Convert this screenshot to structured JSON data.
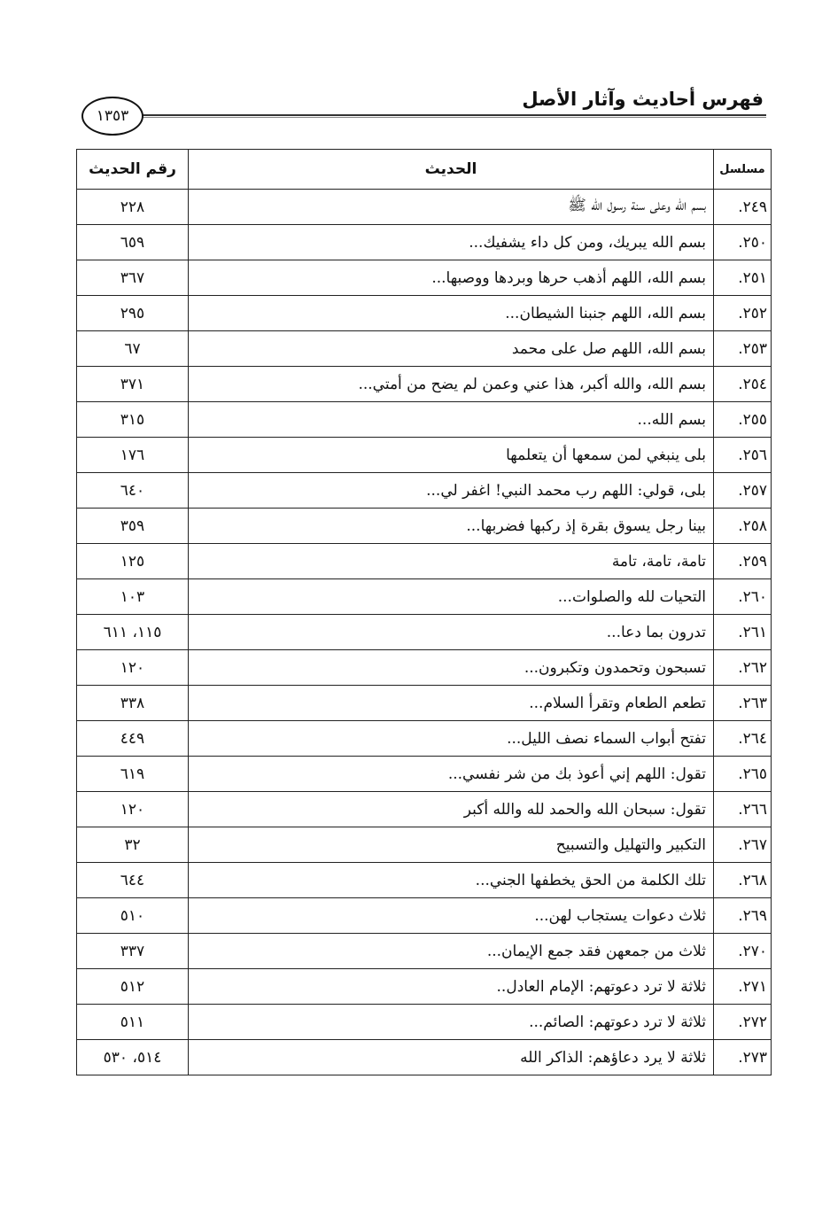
{
  "header": {
    "title": "فهرس أحاديث وآثار الأصل",
    "page_number": "١٣٥٣"
  },
  "table": {
    "columns": [
      "مسلسل",
      "الحديث",
      "رقم الحديث"
    ],
    "rows": [
      {
        "serial": "٢٤٩.",
        "text": "بسم الله وعلى سنة رسول الله ﷺ",
        "ref": "٢٢٨"
      },
      {
        "serial": "٢٥٠.",
        "text": "بسم الله يبريك، ومن كل داء يشفيك...",
        "ref": "٦٥٩"
      },
      {
        "serial": "٢٥١.",
        "text": "بسم الله، اللهم أذهب حرها وبردها ووصبها...",
        "ref": "٣٦٧"
      },
      {
        "serial": "٢٥٢.",
        "text": "بسم الله، اللهم جنبنا الشيطان...",
        "ref": "٢٩٥"
      },
      {
        "serial": "٢٥٣.",
        "text": "بسم الله، اللهم صل على محمد",
        "ref": "٦٧"
      },
      {
        "serial": "٢٥٤.",
        "text": "بسم الله، والله أكبر، هذا عني وعمن لم يضح من أمتي...",
        "ref": "٣٧١"
      },
      {
        "serial": "٢٥٥.",
        "text": "بسم الله...",
        "ref": "٣١٥"
      },
      {
        "serial": "٢٥٦.",
        "text": "بلى ينبغي لمن سمعها أن يتعلمها",
        "ref": "١٧٦"
      },
      {
        "serial": "٢٥٧.",
        "text": "بلى، قولي: اللهم رب محمد النبي! اغفر لي...",
        "ref": "٦٤٠"
      },
      {
        "serial": "٢٥٨.",
        "text": "بينا رجل يسوق بقرة إذ ركبها فضربها...",
        "ref": "٣٥٩"
      },
      {
        "serial": "٢٥٩.",
        "text": "تامة، تامة، تامة",
        "ref": "١٢٥"
      },
      {
        "serial": "٢٦٠.",
        "text": "التحيات لله والصلوات...",
        "ref": "١٠٣"
      },
      {
        "serial": "٢٦١.",
        "text": "تدرون بما دعا...",
        "ref": "١١٥، ٦١١"
      },
      {
        "serial": "٢٦٢.",
        "text": "تسبحون وتحمدون وتكبرون...",
        "ref": "١٢٠"
      },
      {
        "serial": "٢٦٣.",
        "text": "تطعم الطعام وتقرأ السلام...",
        "ref": "٣٣٨"
      },
      {
        "serial": "٢٦٤.",
        "text": "تفتح أبواب السماء نصف الليل...",
        "ref": "٤٤٩"
      },
      {
        "serial": "٢٦٥.",
        "text": "تقول: اللهم إني أعوذ بك من شر نفسي...",
        "ref": "٦١٩"
      },
      {
        "serial": "٢٦٦.",
        "text": "تقول: سبحان الله والحمد لله والله أكبر",
        "ref": "١٢٠"
      },
      {
        "serial": "٢٦٧.",
        "text": "التكبير والتهليل والتسبيح",
        "ref": "٣٢"
      },
      {
        "serial": "٢٦٨.",
        "text": "تلك الكلمة من الحق يخطفها الجني...",
        "ref": "٦٤٤"
      },
      {
        "serial": "٢٦٩.",
        "text": "ثلاث دعوات يستجاب لهن...",
        "ref": "٥١٠"
      },
      {
        "serial": "٢٧٠.",
        "text": "ثلاث من جمعهن فقد جمع الإيمان...",
        "ref": "٣٣٧"
      },
      {
        "serial": "٢٧١.",
        "text": "ثلاثة لا ترد دعوتهم: الإمام العادل..",
        "ref": "٥١٢"
      },
      {
        "serial": "٢٧٢.",
        "text": "ثلاثة لا ترد دعوتهم: الصائم...",
        "ref": "٥١١"
      },
      {
        "serial": "٢٧٣.",
        "text": "ثلاثة لا يرد دعاؤهم: الذاكر الله",
        "ref": "٥١٤، ٥٣٠"
      }
    ]
  }
}
